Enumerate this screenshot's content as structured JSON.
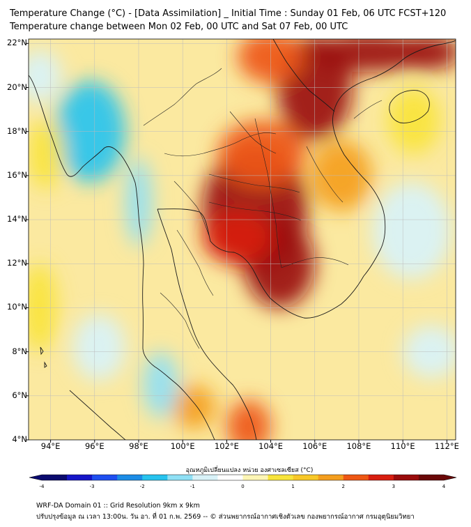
{
  "header": {
    "title_line1": "Temperature Change (°C) - [Data Assimilation] _ Initial Time : Sunday 01 Feb, 06 UTC FCST+120",
    "title_line2": "Temperature change between Mon 02 Feb, 00 UTC and Sat 07 Feb, 00 UTC"
  },
  "map": {
    "lat_range": [
      4,
      22.2
    ],
    "lon_range": [
      93,
      112.4
    ],
    "lat_labels": [
      "22°N",
      "20°N",
      "18°N",
      "16°N",
      "14°N",
      "12°N",
      "10°N",
      "8°N",
      "6°N",
      "4°N"
    ],
    "lat_values": [
      22,
      20,
      18,
      16,
      14,
      12,
      10,
      8,
      6,
      4
    ],
    "lon_labels": [
      "94°E",
      "96°E",
      "98°E",
      "100°E",
      "102°E",
      "104°E",
      "106°E",
      "108°E",
      "110°E",
      "112°E"
    ],
    "lon_values": [
      94,
      96,
      98,
      100,
      102,
      104,
      106,
      108,
      110,
      112
    ],
    "field_blobs": [
      {
        "lon": 103.3,
        "lat": 14.5,
        "value": 3.4,
        "rlon": 2.4,
        "rlat": 2.8
      },
      {
        "lon": 104.4,
        "lat": 12.0,
        "value": 3.0,
        "rlon": 1.6,
        "rlat": 2.0
      },
      {
        "lon": 102.5,
        "lat": 13.2,
        "value": 2.6,
        "rlon": 1.6,
        "rlat": 1.2
      },
      {
        "lon": 106.0,
        "lat": 20.0,
        "value": 3.2,
        "rlon": 1.7,
        "rlat": 2.4
      },
      {
        "lon": 103.6,
        "lat": 17.0,
        "value": 2.4,
        "rlon": 2.0,
        "rlat": 1.5
      },
      {
        "lon": 108.5,
        "lat": 21.6,
        "value": 3.3,
        "rlon": 2.6,
        "rlat": 0.9
      },
      {
        "lon": 111.2,
        "lat": 21.6,
        "value": 3.3,
        "rlon": 1.4,
        "rlat": 0.8
      },
      {
        "lon": 104.0,
        "lat": 21.4,
        "value": 2.2,
        "rlon": 1.5,
        "rlat": 1.2
      },
      {
        "lon": 103.0,
        "lat": 4.6,
        "value": 2.3,
        "rlon": 1.0,
        "rlat": 1.2
      },
      {
        "lon": 100.5,
        "lat": 5.5,
        "value": 1.5,
        "rlon": 1.0,
        "rlat": 1.0
      },
      {
        "lon": 107.2,
        "lat": 16.0,
        "value": 1.8,
        "rlon": 1.4,
        "rlat": 1.6
      },
      {
        "lon": 95.8,
        "lat": 18.0,
        "value": -1.7,
        "rlon": 1.6,
        "rlat": 2.3
      },
      {
        "lon": 98.0,
        "lat": 14.8,
        "value": -1.5,
        "rlon": 0.6,
        "rlat": 2.0
      },
      {
        "lon": 99.0,
        "lat": 6.5,
        "value": -1.2,
        "rlon": 0.8,
        "rlat": 1.5
      },
      {
        "lon": 96.2,
        "lat": 8.2,
        "value": -0.9,
        "rlon": 1.2,
        "rlat": 1.5
      },
      {
        "lon": 93.5,
        "lat": 20.5,
        "value": -0.7,
        "rlon": 1.0,
        "rlat": 1.2
      },
      {
        "lon": 110.4,
        "lat": 13.5,
        "value": -0.7,
        "rlon": 1.8,
        "rlat": 2.2
      },
      {
        "lon": 111.3,
        "lat": 8.0,
        "value": -0.8,
        "rlon": 1.3,
        "rlat": 1.2
      },
      {
        "lon": 110.5,
        "lat": 18.5,
        "value": 0.6,
        "rlon": 1.2,
        "rlat": 1.5
      },
      {
        "lon": 93.5,
        "lat": 10.0,
        "value": 0.7,
        "rlon": 0.8,
        "rlat": 2.0
      },
      {
        "lon": 93.8,
        "lat": 17.0,
        "value": 0.9,
        "rlon": 0.8,
        "rlat": 1.6
      }
    ]
  },
  "colorbar": {
    "title": "อุณหภูมิเปลี่ยนแปลง หน่วย องศาเซลเซียส (°C)",
    "ticks": [
      "-4",
      "-3",
      "-2",
      "-1",
      "0",
      "1",
      "2",
      "3",
      "4"
    ],
    "tick_values": [
      -4,
      -3,
      -2,
      -1,
      0,
      1,
      2,
      3,
      4
    ],
    "range": [
      -4,
      4
    ],
    "colors": [
      "#0a0a6e",
      "#1515c8",
      "#1f4ff0",
      "#1c8ce6",
      "#27c3ee",
      "#8fe0f5",
      "#d8f2f8",
      "#ffffff",
      "#fdf6b5",
      "#f8e43a",
      "#f8c828",
      "#f49e1e",
      "#ee5714",
      "#d81e10",
      "#9a0c0c",
      "#6a0808"
    ]
  },
  "footer": {
    "line1": "WRF-DA Domain 01 :: Grid Resolution 9km x 9km",
    "line2": "ปรับปรุงข้อมูล ณ เวลา 13:00น. วัน อา. ที่ 01 ก.พ. 2569 -- © ส่วนพยากรณ์อากาศเชิงตัวเลข กองพยากรณ์อากาศ กรมอุตุนิยมวิทยา"
  }
}
